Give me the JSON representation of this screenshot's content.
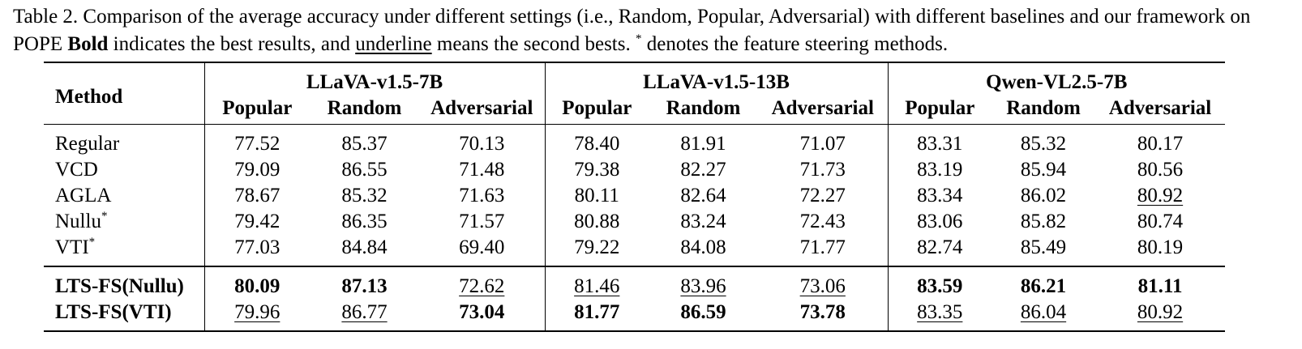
{
  "caption": {
    "part1": "Table 2. Comparison of the average accuracy under different settings (i.e., Random, Popular, Adversarial) with different baselines and our framework on POPE ",
    "bold_word": "Bold",
    "part2": " indicates the best results, and ",
    "underline_word": "underline",
    "part3": " means the second bests. ",
    "asterisk": "*",
    "part4": " denotes the feature steering methods."
  },
  "table": {
    "method_header": "Method",
    "groups": [
      "LLaVA-v1.5-7B",
      "LLaVA-v1.5-13B",
      "Qwen-VL2.5-7B"
    ],
    "subheaders": [
      "Popular",
      "Random",
      "Adversarial"
    ],
    "baseline_rows": [
      {
        "method": "Regular",
        "sup": "",
        "values": [
          "77.52",
          "85.37",
          "70.13",
          "78.40",
          "81.91",
          "71.07",
          "83.31",
          "85.32",
          "80.17"
        ],
        "styles": [
          "",
          "",
          "",
          "",
          "",
          "",
          "",
          "",
          ""
        ]
      },
      {
        "method": "VCD",
        "sup": "",
        "values": [
          "79.09",
          "86.55",
          "71.48",
          "79.38",
          "82.27",
          "71.73",
          "83.19",
          "85.94",
          "80.56"
        ],
        "styles": [
          "",
          "",
          "",
          "",
          "",
          "",
          "",
          "",
          ""
        ]
      },
      {
        "method": "AGLA",
        "sup": "",
        "values": [
          "78.67",
          "85.32",
          "71.63",
          "80.11",
          "82.64",
          "72.27",
          "83.34",
          "86.02",
          "80.92"
        ],
        "styles": [
          "",
          "",
          "",
          "",
          "",
          "",
          "",
          "",
          "underline"
        ]
      },
      {
        "method": "Nullu",
        "sup": "*",
        "values": [
          "79.42",
          "86.35",
          "71.57",
          "80.88",
          "83.24",
          "72.43",
          "83.06",
          "85.82",
          "80.74"
        ],
        "styles": [
          "",
          "",
          "",
          "",
          "",
          "",
          "",
          "",
          ""
        ]
      },
      {
        "method": "VTI",
        "sup": "*",
        "values": [
          "77.03",
          "84.84",
          "69.40",
          "79.22",
          "84.08",
          "71.77",
          "82.74",
          "85.49",
          "80.19"
        ],
        "styles": [
          "",
          "",
          "",
          "",
          "",
          "",
          "",
          "",
          ""
        ]
      }
    ],
    "ours_rows": [
      {
        "method": "LTS-FS(Nullu)",
        "sup": "",
        "values": [
          "80.09",
          "87.13",
          "72.62",
          "81.46",
          "83.96",
          "73.06",
          "83.59",
          "86.21",
          "81.11"
        ],
        "styles": [
          "bold",
          "bold",
          "underline",
          "underline",
          "underline",
          "underline",
          "bold",
          "bold",
          "bold"
        ]
      },
      {
        "method": "LTS-FS(VTI)",
        "sup": "",
        "values": [
          "79.96",
          "86.77",
          "73.04",
          "81.77",
          "86.59",
          "73.78",
          "83.35",
          "86.04",
          "80.92"
        ],
        "styles": [
          "underline",
          "underline",
          "bold",
          "bold",
          "bold",
          "bold",
          "underline",
          "underline",
          "underline"
        ]
      }
    ]
  }
}
